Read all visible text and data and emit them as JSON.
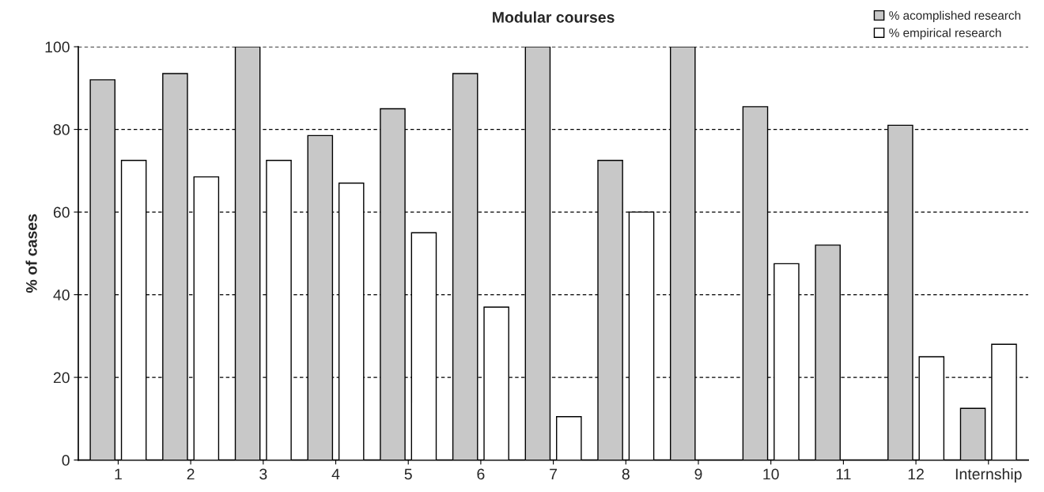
{
  "chart_data": {
    "type": "bar",
    "title": "Modular courses",
    "ylabel": "% of cases",
    "categories": [
      "1",
      "2",
      "3",
      "4",
      "5",
      "6",
      "7",
      "8",
      "9",
      "10",
      "11",
      "12",
      "Internship"
    ],
    "series": [
      {
        "name": "% acomplished research",
        "color": "#c8c8c8",
        "values": [
          92,
          93.5,
          100,
          78.5,
          85,
          93.5,
          100,
          72.5,
          100,
          85.5,
          52,
          81,
          12.5
        ]
      },
      {
        "name": "% empirical research",
        "color": "#ffffff",
        "values": [
          72.5,
          68.5,
          72.5,
          67,
          55,
          37,
          10.5,
          60,
          null,
          47.5,
          null,
          25,
          28
        ]
      }
    ],
    "ylim": [
      0,
      100
    ],
    "yticks": [
      0,
      20,
      40,
      60,
      80,
      100
    ],
    "grid": "y",
    "legend": "top right"
  }
}
